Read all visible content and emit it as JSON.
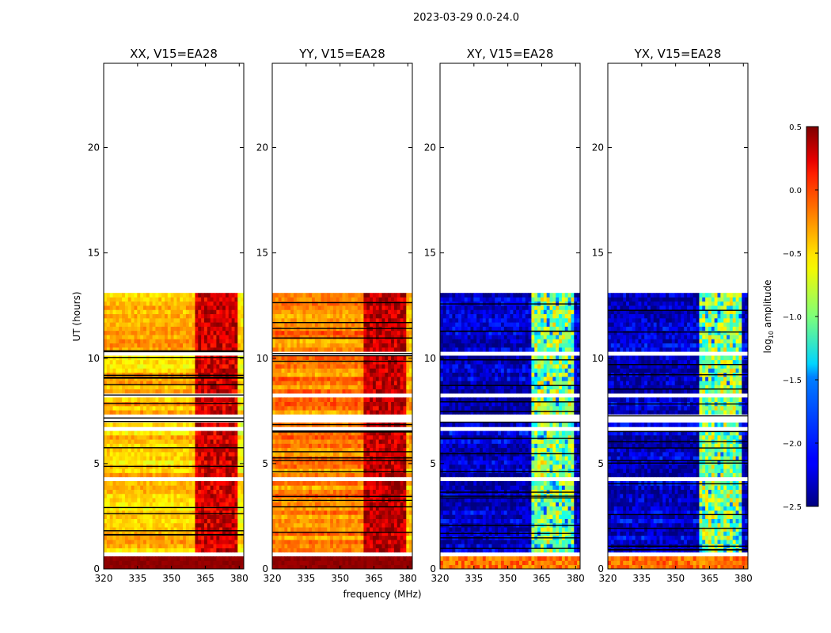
{
  "chart_data": {
    "type": "heatmap",
    "suptitle": "2023-03-29 0.0-24.0",
    "xlabel": "frequency (MHz)",
    "ylabel": "UT (hours)",
    "xlim": [
      320,
      382
    ],
    "ylim": [
      0,
      24
    ],
    "xticks": [
      320,
      335,
      350,
      365,
      380
    ],
    "yticks": [
      0,
      5,
      10,
      15,
      20
    ],
    "data_extent_hours": [
      0,
      13.1
    ],
    "rfi_band_mhz": [
      361,
      379
    ],
    "flagged_time_bands_hours": [
      [
        4.1,
        4.4
      ],
      [
        6.6,
        6.7
      ],
      [
        6.9,
        7.3
      ],
      [
        8.1,
        8.4
      ],
      [
        8.7,
        8.8
      ],
      [
        10.1,
        10.3
      ],
      [
        10.5,
        10.6
      ],
      [
        2.5,
        2.6
      ],
      [
        0.6,
        0.75
      ]
    ],
    "colorbar": {
      "label": "log10 amplitude",
      "range": [
        -2.5,
        0.5
      ],
      "ticks": [
        -2.5,
        -2.0,
        -1.5,
        -1.0,
        -0.5,
        0.0,
        0.5
      ],
      "tick_labels": [
        "−2.5",
        "−2.0",
        "−1.5",
        "−1.0",
        "−0.5",
        "0.0",
        "0.5"
      ]
    },
    "panels": [
      {
        "title": "XX, V15=EA28",
        "pol": "XX",
        "baseline_level": -0.45,
        "band_level": 0.25
      },
      {
        "title": "YY, V15=EA28",
        "pol": "YY",
        "baseline_level": -0.25,
        "band_level": 0.3
      },
      {
        "title": "XY, V15=EA28",
        "pol": "XY",
        "baseline_level": -2.3,
        "band_level": -0.9
      },
      {
        "title": "YX, V15=EA28",
        "pol": "YX",
        "baseline_level": -2.3,
        "band_level": -0.9
      }
    ]
  }
}
